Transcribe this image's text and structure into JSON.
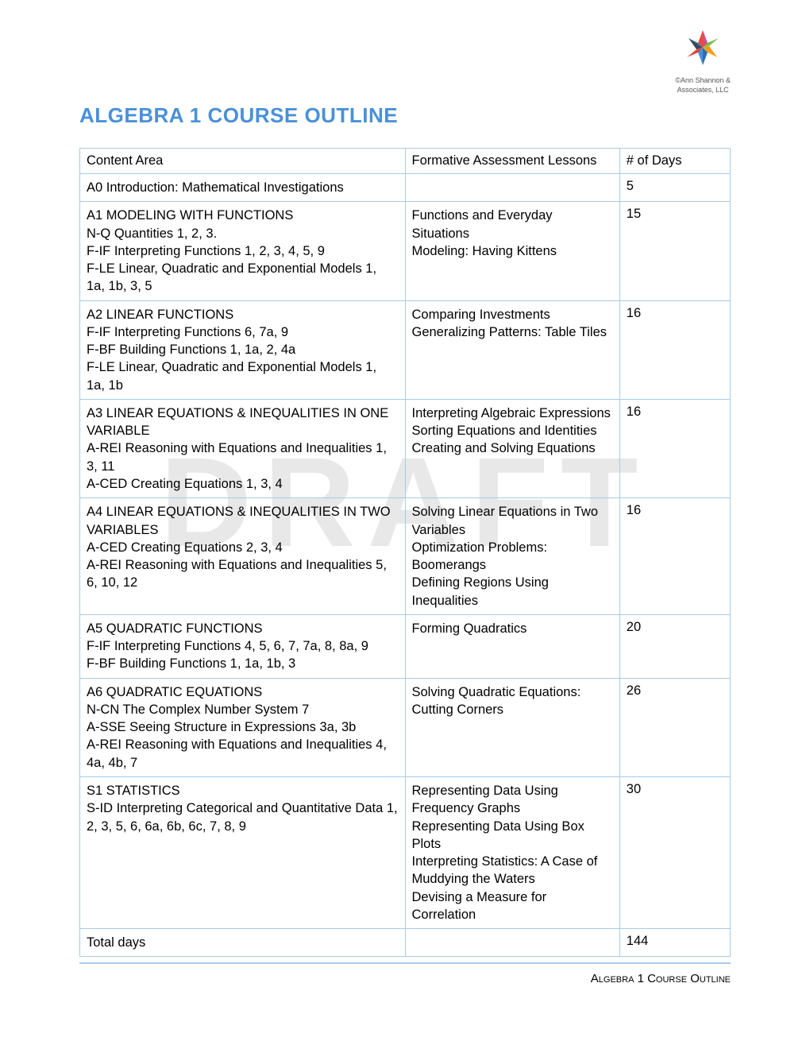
{
  "logo": {
    "line1": "©Ann Shannon &",
    "line2": "Associates, LLC"
  },
  "title": "ALGEBRA 1 COURSE OUTLINE",
  "watermark": "DRAFT",
  "headers": {
    "content": "Content Area",
    "lessons": "Formative Assessment Lessons",
    "days": "# of Days"
  },
  "rows": [
    {
      "content": [
        "A0 Introduction: Mathematical Investigations"
      ],
      "lessons": [],
      "days": "5"
    },
    {
      "content": [
        "A1 MODELING WITH FUNCTIONS",
        "N-Q Quantities 1, 2, 3.",
        "F-IF Interpreting Functions 1, 2, 3, 4, 5, 9",
        "F-LE Linear, Quadratic and Exponential Models 1, 1a, 1b, 3, 5"
      ],
      "lessons": [
        "Functions and Everyday Situations",
        "Modeling: Having Kittens"
      ],
      "days": "15"
    },
    {
      "content": [
        "A2 LINEAR FUNCTIONS",
        "F-IF Interpreting Functions 6, 7a, 9",
        "F-BF Building Functions 1, 1a, 2, 4a",
        "F-LE Linear, Quadratic and Exponential Models 1, 1a, 1b"
      ],
      "lessons": [
        "Comparing Investments",
        "Generalizing Patterns: Table Tiles"
      ],
      "days": "16"
    },
    {
      "content": [
        "A3 LINEAR EQUATIONS & INEQUALITIES IN ONE VARIABLE",
        "A-REI Reasoning with Equations and Inequalities 1, 3, 11",
        "A-CED Creating Equations 1, 3, 4"
      ],
      "lessons": [
        "Interpreting Algebraic Expressions",
        "Sorting Equations and Identities",
        "Creating and Solving Equations"
      ],
      "days": "16"
    },
    {
      "content": [
        "A4 LINEAR EQUATIONS & INEQUALITIES IN TWO VARIABLES",
        "A-CED Creating Equations 2, 3, 4",
        "A-REI Reasoning with Equations and Inequalities 5, 6, 10, 12"
      ],
      "lessons": [
        "Solving Linear Equations in Two Variables",
        "Optimization Problems: Boomerangs",
        "Defining Regions Using Inequalities"
      ],
      "days": "16"
    },
    {
      "content": [
        "A5 QUADRATIC FUNCTIONS",
        "F-IF Interpreting Functions 4, 5, 6, 7, 7a, 8, 8a, 9",
        "F-BF Building Functions 1, 1a, 1b, 3"
      ],
      "lessons": [
        "Forming Quadratics"
      ],
      "days": "20"
    },
    {
      "content": [
        "A6 QUADRATIC EQUATIONS",
        "N-CN The Complex Number System 7",
        "A-SSE Seeing Structure in Expressions 3a, 3b",
        "A-REI Reasoning with Equations and Inequalities 4, 4a, 4b, 7"
      ],
      "lessons": [
        "Solving Quadratic Equations: Cutting Corners"
      ],
      "days": "26"
    },
    {
      "content": [
        "S1 STATISTICS",
        "S-ID Interpreting Categorical and Quantitative Data 1, 2, 3, 5, 6, 6a, 6b, 6c, 7, 8, 9"
      ],
      "lessons": [
        "Representing Data Using Frequency Graphs",
        "Representing Data Using Box Plots",
        "Interpreting Statistics: A Case of Muddying the Waters",
        "Devising a Measure for Correlation"
      ],
      "days": "30"
    },
    {
      "content": [
        "Total days"
      ],
      "lessons": [],
      "days": "144"
    }
  ],
  "footer": "Algebra 1 Course Outline",
  "colors": {
    "title": "#4a90d9",
    "border": "#a8cbe8",
    "watermark": "#e8e8e8",
    "star_colors": [
      "#d94b87",
      "#8ac43f",
      "#f5a623",
      "#4a90d9",
      "#e94b3c",
      "#2a6db0"
    ]
  }
}
